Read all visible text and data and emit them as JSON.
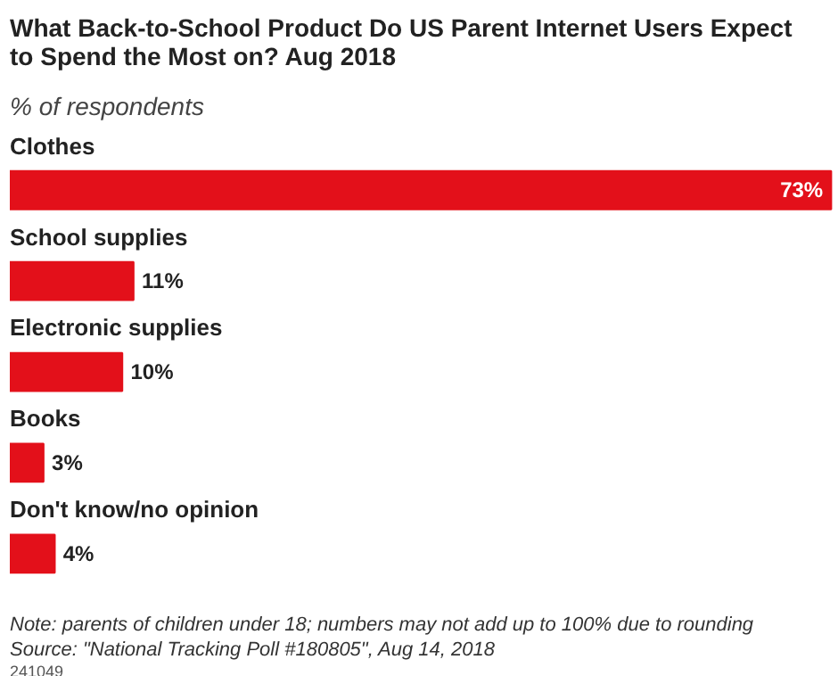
{
  "chart_data": {
    "type": "bar",
    "orientation": "horizontal",
    "title": "What Back-to-School Product Do US Parent Internet Users Expect to Spend the Most on? Aug 2018",
    "subtitle": "% of respondents",
    "categories": [
      "Clothes",
      "School supplies",
      "Electronic supplies",
      "Books",
      "Don't know/no opinion"
    ],
    "values": [
      73,
      11,
      10,
      3,
      4
    ],
    "value_labels": [
      "73%",
      "11%",
      "10%",
      "3%",
      "4%"
    ],
    "color": "#e3101a",
    "annotations": [
      "Note: parents of children under 18; numbers may not add up to 100% due to rounding",
      "Source: \"National Tracking Poll #180805\", Aug 14, 2018",
      "241049"
    ]
  }
}
